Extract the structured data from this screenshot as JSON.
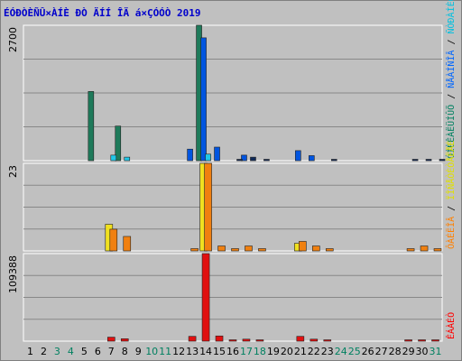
{
  "chart_data": {
    "type": "bar",
    "title": "ÉÓÐÒÈÑÛ×ÀÍÈ ÐÒ ÄÍÍ ÎÄ á×ÇÓÓÒ 2019",
    "x": [
      "1",
      "2",
      "3",
      "4",
      "5",
      "6",
      "7",
      "8",
      "9",
      "10",
      "11",
      "12",
      "13",
      "14",
      "15",
      "16",
      "17",
      "18",
      "19",
      "20",
      "21",
      "22",
      "23",
      "24",
      "25",
      "26",
      "27",
      "28",
      "29",
      "30",
      "31"
    ],
    "weekend_days": [
      "3",
      "4",
      "10",
      "11",
      "17",
      "18",
      "24",
      "25",
      "31"
    ],
    "grid": true,
    "panels": [
      {
        "ymax_label": "2700",
        "ylim": [
          0,
          2700
        ],
        "right_label_parts": [
          {
            "text": "ÓÍÈÊÀËÜÍÛÕ",
            "color": "#008060"
          },
          {
            "text": " / ",
            "color": "#000000"
          },
          {
            "text": "ÑÅÀÍÑÎÂ",
            "color": "#0066ff"
          },
          {
            "text": " / ",
            "color": "#000000"
          },
          {
            "text": "ÑÒÐÀÍÈÖ",
            "color": "#00c0e0"
          }
        ],
        "series": [
          {
            "name": "ÓÍÈÊÀËÜÍÛÕ",
            "color": "#1e7a5a",
            "values": [
              0,
              0,
              0,
              0,
              0,
              1380,
              0,
              690,
              0,
              0,
              0,
              0,
              0,
              2700,
              0,
              0,
              0,
              0,
              0,
              0,
              0,
              0,
              0,
              0,
              0,
              0,
              0,
              0,
              0,
              0,
              0
            ]
          },
          {
            "name": "ÑÅÀÍÑÎÂ",
            "color": "#0055e0",
            "values": [
              0,
              0,
              0,
              0,
              0,
              0,
              0,
              0,
              0,
              0,
              0,
              0,
              230,
              2450,
              270,
              0,
              110,
              0,
              0,
              0,
              200,
              100,
              0,
              0,
              0,
              0,
              0,
              0,
              0,
              0,
              0
            ]
          },
          {
            "name": "ÑÒÐÀÍÈÖ",
            "color": "#20c8e8",
            "values": [
              0,
              0,
              0,
              0,
              0,
              0,
              110,
              70,
              0,
              0,
              0,
              0,
              0,
              130,
              0,
              0,
              0,
              0,
              0,
              0,
              0,
              0,
              0,
              0,
              0,
              0,
              0,
              0,
              0,
              0,
              0
            ]
          },
          {
            "name": "",
            "color": "#102a5a",
            "values": [
              0,
              0,
              0,
              0,
              0,
              0,
              0,
              0,
              0,
              0,
              0,
              0,
              0,
              0,
              0,
              25,
              70,
              25,
              0,
              0,
              0,
              0,
              25,
              0,
              0,
              0,
              0,
              0,
              25,
              25,
              25
            ]
          }
        ]
      },
      {
        "ymax_label": "23",
        "ylim": [
          0,
          23
        ],
        "right_label_parts": [
          {
            "text": "ÔÀÉËÎÂ",
            "color": "#ff8000"
          },
          {
            "text": " / ",
            "color": "#000000"
          },
          {
            "text": "ÏÎÑÅÒÈÒÅËÅÉ",
            "color": "#e0e000"
          }
        ],
        "series": [
          {
            "name": "ÏÎÑÅÒÈÒÅËÅÉ",
            "color": "#f0e020",
            "values": [
              0,
              0,
              0,
              0,
              0,
              0,
              7,
              0,
              0,
              0,
              0,
              0,
              0,
              23,
              0,
              0,
              0,
              0,
              0,
              0,
              2,
              0,
              0,
              0,
              0,
              0,
              0,
              0,
              0,
              0,
              0
            ]
          },
          {
            "name": "ÔÀÉËÎÂ",
            "color": "#f08010",
            "values": [
              0,
              0,
              0,
              0,
              0,
              0,
              5.7,
              3.8,
              0,
              0,
              0,
              0,
              0.6,
              23,
              1.3,
              0.6,
              1.3,
              0.6,
              0,
              0,
              2.5,
              1.3,
              0.6,
              0,
              0,
              0,
              0,
              0,
              0.6,
              1.3,
              0.6
            ]
          }
        ]
      },
      {
        "ymax_label": "109388",
        "ylim": [
          0,
          109388
        ],
        "right_label_parts": [
          {
            "text": "ÊÁÀÉÒ",
            "color": "#ff0000"
          }
        ],
        "series": [
          {
            "name": "ÊÁÀÉÒ",
            "color": "#e01010",
            "values": [
              0,
              0,
              0,
              0,
              0,
              0,
              5000,
              3000,
              0,
              0,
              0,
              0,
              6000,
              109388,
              6500,
              1500,
              2500,
              1500,
              0,
              0,
              6000,
              2500,
              1500,
              0,
              0,
              0,
              0,
              0,
              1500,
              1500,
              1500
            ]
          }
        ]
      }
    ]
  }
}
